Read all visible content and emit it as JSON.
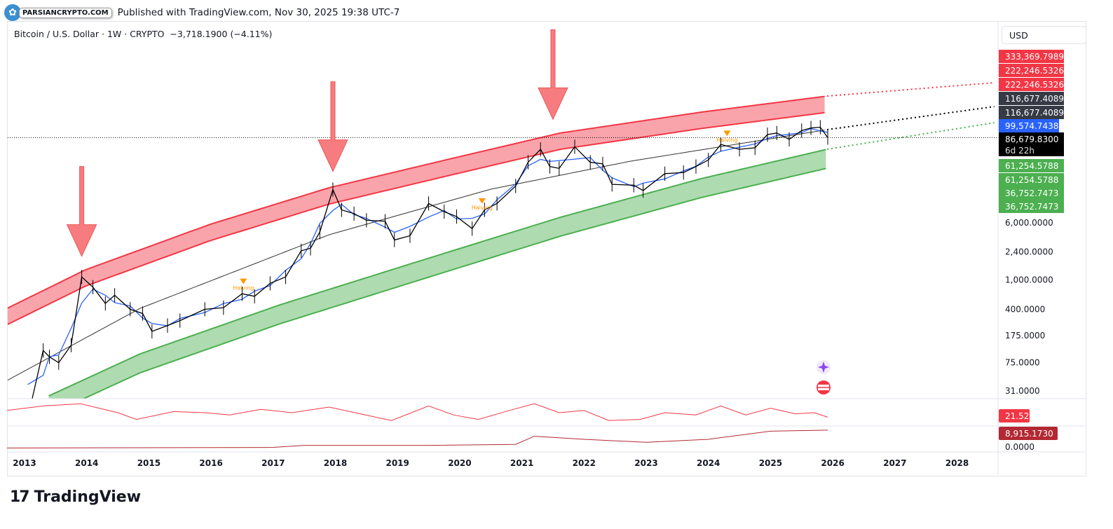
{
  "header": {
    "published": "Published with TradingView.com, Nov 30, 2025 19:38 UTC-7"
  },
  "watermark": {
    "text": "PARSIANCRYPTO.COM"
  },
  "legend": {
    "symbol": "Bitcoin / U.S. Dollar · 1W · CRYPTO",
    "change": "−3,718.1900 (−4.11%)"
  },
  "currency_button": "USD",
  "footer": {
    "brand": "TradingView",
    "logo": "TV"
  },
  "colors": {
    "red_band": "#f23645",
    "green_band": "#4caf50",
    "price": "#000000",
    "ma": "#2962ff",
    "halving": "#ff9800",
    "arrow": "#f77c80"
  },
  "chart_data": {
    "type": "line",
    "yscale": "log",
    "ylim": [
      20,
      900000
    ],
    "xlim": [
      2012.72,
      2029.3
    ],
    "x_ticks": [
      "2013",
      "2014",
      "2015",
      "2016",
      "2017",
      "2018",
      "2019",
      "2020",
      "2021",
      "2022",
      "2023",
      "2024",
      "2025",
      "2026",
      "2027",
      "2028"
    ],
    "y_ticks": [
      "6,000.0000",
      "2,400.0000",
      "1,000.0000",
      "400.0000",
      "175.0000",
      "75.0000",
      "31.0000"
    ],
    "y_tick_values": [
      6000,
      2400,
      1000,
      400,
      175,
      75,
      31
    ],
    "price_series": [
      [
        2013.05,
        13
      ],
      [
        2013.3,
        110
      ],
      [
        2013.4,
        90
      ],
      [
        2013.55,
        75
      ],
      [
        2013.75,
        130
      ],
      [
        2013.92,
        1100
      ],
      [
        2014.1,
        800
      ],
      [
        2014.3,
        480
      ],
      [
        2014.45,
        620
      ],
      [
        2014.7,
        400
      ],
      [
        2014.9,
        350
      ],
      [
        2015.05,
        200
      ],
      [
        2015.3,
        240
      ],
      [
        2015.5,
        280
      ],
      [
        2015.9,
        400
      ],
      [
        2016.2,
        420
      ],
      [
        2016.5,
        650
      ],
      [
        2016.7,
        600
      ],
      [
        2016.95,
        900
      ],
      [
        2017.2,
        1100
      ],
      [
        2017.45,
        2500
      ],
      [
        2017.6,
        2700
      ],
      [
        2017.75,
        4500
      ],
      [
        2017.96,
        17000
      ],
      [
        2018.1,
        9000
      ],
      [
        2018.3,
        8000
      ],
      [
        2018.5,
        6500
      ],
      [
        2018.8,
        6300
      ],
      [
        2018.95,
        3500
      ],
      [
        2019.2,
        4000
      ],
      [
        2019.5,
        11000
      ],
      [
        2019.75,
        8500
      ],
      [
        2019.95,
        7300
      ],
      [
        2020.2,
        5000
      ],
      [
        2020.4,
        9000
      ],
      [
        2020.6,
        11000
      ],
      [
        2020.9,
        19000
      ],
      [
        2021.1,
        40000
      ],
      [
        2021.3,
        60000
      ],
      [
        2021.45,
        35000
      ],
      [
        2021.6,
        33000
      ],
      [
        2021.85,
        65000
      ],
      [
        2022.1,
        40000
      ],
      [
        2022.3,
        38000
      ],
      [
        2022.45,
        20000
      ],
      [
        2022.8,
        19500
      ],
      [
        2022.95,
        16500
      ],
      [
        2023.3,
        28000
      ],
      [
        2023.6,
        29000
      ],
      [
        2023.8,
        35000
      ],
      [
        2024.0,
        43000
      ],
      [
        2024.2,
        70000
      ],
      [
        2024.5,
        60000
      ],
      [
        2024.75,
        63000
      ],
      [
        2024.95,
        95000
      ],
      [
        2025.1,
        100000
      ],
      [
        2025.3,
        82000
      ],
      [
        2025.5,
        108000
      ],
      [
        2025.65,
        117000
      ],
      [
        2025.8,
        120000
      ],
      [
        2025.92,
        86680
      ]
    ],
    "bands": {
      "red_top": [
        [
          2012.72,
          412
        ],
        [
          2013.98,
          1377
        ],
        [
          2015.99,
          5740
        ],
        [
          2017.9,
          18000
        ],
        [
          2019.93,
          46200
        ],
        [
          2021.62,
          100000
        ],
        [
          2023.88,
          192000
        ],
        [
          2025.91,
          318000
        ]
      ],
      "red_bottom": [
        [
          2012.72,
          247
        ],
        [
          2013.98,
          826
        ],
        [
          2015.99,
          3440
        ],
        [
          2017.9,
          10800
        ],
        [
          2019.93,
          27700
        ],
        [
          2021.62,
          60000
        ],
        [
          2023.88,
          115000
        ],
        [
          2025.91,
          191000
        ]
      ],
      "green_top": [
        [
          2013.39,
          26.5
        ],
        [
          2014.86,
          98.9
        ],
        [
          2017.11,
          460
        ],
        [
          2019.37,
          1830
        ],
        [
          2021.62,
          7140
        ],
        [
          2023.88,
          23900
        ],
        [
          2025.91,
          60100
        ]
      ],
      "green_bottom": [
        [
          2013.39,
          14.7
        ],
        [
          2014.86,
          54.7
        ],
        [
          2017.11,
          254
        ],
        [
          2019.37,
          1010
        ],
        [
          2021.62,
          3950
        ],
        [
          2023.88,
          13200
        ],
        [
          2025.91,
          33200
        ]
      ],
      "regression": [
        [
          2012.72,
          43
        ],
        [
          2014.86,
          412
        ],
        [
          2017.9,
          4130
        ],
        [
          2020.5,
          17200
        ],
        [
          2022.75,
          41400
        ],
        [
          2025.91,
          111000
        ]
      ],
      "red_projection": [
        [
          2025.91,
          318000
        ],
        [
          2028.6,
          484000
        ]
      ],
      "mid_projection": [
        [
          2025.91,
          111000
        ],
        [
          2028.6,
          229000
        ]
      ],
      "green_projection": [
        [
          2025.91,
          60100
        ],
        [
          2028.6,
          138000
        ]
      ]
    },
    "halvings": [
      {
        "x": 2016.52,
        "label": "Halving"
      },
      {
        "x": 2020.36,
        "label": "Halving"
      },
      {
        "x": 2024.3,
        "label": "Halving"
      }
    ],
    "peak_arrows": [
      2013.92,
      2017.96,
      2021.5
    ],
    "price_labels": [
      {
        "text": "333,369.7989",
        "color": "#f23645"
      },
      {
        "text": "222,246.5326",
        "color": "#f23645"
      },
      {
        "text": "222,246.5326",
        "color": "#f23645"
      },
      {
        "text": "116,677.4089",
        "color": "#363a45"
      },
      {
        "text": "116,677.4089",
        "color": "#363a45"
      },
      {
        "text": "99,574.7438",
        "color": "#2962ff"
      },
      {
        "text": "86,679.8300",
        "color": "#000000",
        "sub": "6d 22h"
      },
      {
        "text": "61,254.5788",
        "color": "#4caf50"
      },
      {
        "text": "61,254.5788",
        "color": "#4caf50"
      },
      {
        "text": "36,752.7473",
        "color": "#4caf50"
      },
      {
        "text": "36,752.7473",
        "color": "#4caf50"
      }
    ],
    "oscillator": {
      "label": "21.52",
      "color": "#f23645",
      "values": [
        [
          2012.72,
          0.6
        ],
        [
          2013.3,
          0.8
        ],
        [
          2013.9,
          0.9
        ],
        [
          2014.5,
          0.5
        ],
        [
          2014.8,
          0.2
        ],
        [
          2015.4,
          0.55
        ],
        [
          2015.9,
          0.5
        ],
        [
          2016.3,
          0.4
        ],
        [
          2016.8,
          0.65
        ],
        [
          2017.3,
          0.5
        ],
        [
          2017.9,
          0.75
        ],
        [
          2018.4,
          0.45
        ],
        [
          2018.9,
          0.15
        ],
        [
          2019.5,
          0.8
        ],
        [
          2019.9,
          0.4
        ],
        [
          2020.3,
          0.2
        ],
        [
          2020.8,
          0.6
        ],
        [
          2021.2,
          0.9
        ],
        [
          2021.6,
          0.5
        ],
        [
          2022.0,
          0.6
        ],
        [
          2022.4,
          0.15
        ],
        [
          2022.9,
          0.2
        ],
        [
          2023.3,
          0.5
        ],
        [
          2023.8,
          0.4
        ],
        [
          2024.2,
          0.8
        ],
        [
          2024.6,
          0.4
        ],
        [
          2025.0,
          0.7
        ],
        [
          2025.4,
          0.45
        ],
        [
          2025.7,
          0.5
        ],
        [
          2025.92,
          0.3
        ]
      ]
    },
    "volume_line": {
      "label": "8,915.1730",
      "zero": "0.0000",
      "color": "#b22833",
      "values": [
        [
          2012.72,
          0.02
        ],
        [
          2017.0,
          0.05
        ],
        [
          2017.5,
          0.15
        ],
        [
          2019.5,
          0.15
        ],
        [
          2020.9,
          0.2
        ],
        [
          2021.2,
          0.6
        ],
        [
          2022.0,
          0.45
        ],
        [
          2023.0,
          0.3
        ],
        [
          2024.0,
          0.45
        ],
        [
          2025.0,
          0.85
        ],
        [
          2025.92,
          0.9
        ]
      ]
    }
  }
}
